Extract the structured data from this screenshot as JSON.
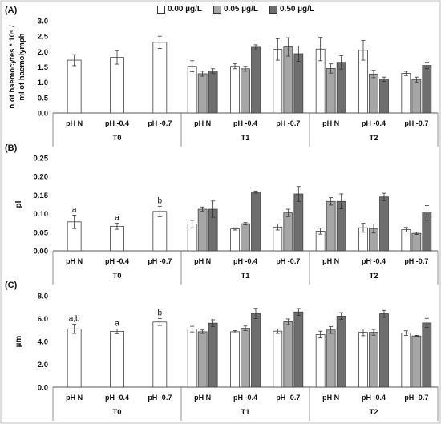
{
  "legend": {
    "items": [
      {
        "label": "0.00 µg/L",
        "color": "#ffffff"
      },
      {
        "label": "0.05 µg/L",
        "color": "#a6a6a6"
      },
      {
        "label": "0.50 µg/L",
        "color": "#6e6e6e"
      }
    ]
  },
  "chart_data": [
    {
      "type": "bar",
      "panel_label": "(A)",
      "ylabel": "n of haemocytes * 10⁶ / ml of haemolymph",
      "ylim": [
        0,
        3.0
      ],
      "yticks": [
        "0.0",
        "0.5",
        "1.0",
        "1.5",
        "2.0",
        "2.5",
        "3.0"
      ],
      "groups": [
        {
          "label": "T0",
          "categories": [
            "pH N",
            "pH -0.4",
            "pH -0.7"
          ],
          "values": [
            [
              1.72,
              null,
              null
            ],
            [
              1.81,
              null,
              null
            ],
            [
              2.3,
              null,
              null
            ]
          ],
          "errors": [
            [
              0.18,
              null,
              null
            ],
            [
              0.22,
              null,
              null
            ],
            [
              0.2,
              null,
              null
            ]
          ],
          "letters": [
            null,
            null,
            null
          ]
        },
        {
          "label": "T1",
          "categories": [
            "pH N",
            "pH -0.4",
            "pH -0.7"
          ],
          "values": [
            [
              1.52,
              1.28,
              1.37
            ],
            [
              1.52,
              1.44,
              2.14
            ],
            [
              2.07,
              2.15,
              1.93
            ]
          ],
          "errors": [
            [
              0.18,
              0.08,
              0.07
            ],
            [
              0.08,
              0.08,
              0.08
            ],
            [
              0.35,
              0.3,
              0.25
            ]
          ],
          "letters": [
            null,
            null,
            null
          ]
        },
        {
          "label": "T2",
          "categories": [
            "pH N",
            "pH -0.4",
            "pH -0.7"
          ],
          "values": [
            [
              2.08,
              1.45,
              1.65
            ],
            [
              2.04,
              1.27,
              1.1
            ],
            [
              1.29,
              1.09,
              1.55
            ]
          ],
          "errors": [
            [
              0.38,
              0.15,
              0.22
            ],
            [
              0.32,
              0.12,
              0.07
            ],
            [
              0.07,
              0.08,
              0.1
            ]
          ],
          "letters": [
            null,
            null,
            null
          ]
        }
      ]
    },
    {
      "type": "bar",
      "panel_label": "(B)",
      "ylabel": "pI",
      "ylim": [
        0,
        0.25
      ],
      "yticks": [
        "0.00",
        "0.05",
        "0.10",
        "0.15",
        "0.20",
        "0.25"
      ],
      "groups": [
        {
          "label": "T0",
          "categories": [
            "pH N",
            "pH -0.4",
            "pH -0.7"
          ],
          "values": [
            [
              0.078,
              null,
              null
            ],
            [
              0.066,
              null,
              null
            ],
            [
              0.106,
              null,
              null
            ]
          ],
          "errors": [
            [
              0.018,
              null,
              null
            ],
            [
              0.008,
              null,
              null
            ],
            [
              0.014,
              null,
              null
            ]
          ],
          "letters": [
            "a",
            "a",
            "b"
          ]
        },
        {
          "label": "T1",
          "categories": [
            "pH N",
            "pH -0.4",
            "pH -0.7"
          ],
          "values": [
            [
              0.072,
              0.112,
              0.112
            ],
            [
              0.059,
              0.073,
              0.158
            ],
            [
              0.064,
              0.102,
              0.153
            ]
          ],
          "errors": [
            [
              0.01,
              0.006,
              0.022
            ],
            [
              0.003,
              0.003,
              0.003
            ],
            [
              0.008,
              0.01,
              0.02
            ]
          ],
          "letters": [
            null,
            null,
            null
          ]
        },
        {
          "label": "T2",
          "categories": [
            "pH N",
            "pH -0.4",
            "pH -0.7"
          ],
          "values": [
            [
              0.053,
              0.133,
              0.133
            ],
            [
              0.062,
              0.06,
              0.145
            ],
            [
              0.057,
              0.047,
              0.102
            ]
          ],
          "errors": [
            [
              0.008,
              0.01,
              0.02
            ],
            [
              0.012,
              0.012,
              0.01
            ],
            [
              0.006,
              0.003,
              0.02
            ]
          ],
          "letters": [
            null,
            null,
            null
          ]
        }
      ]
    },
    {
      "type": "bar",
      "panel_label": "(C)",
      "ylabel": "µm",
      "ylim": [
        0,
        8.0
      ],
      "yticks": [
        "0.0",
        "2.0",
        "4.0",
        "6.0",
        "8.0"
      ],
      "groups": [
        {
          "label": "T0",
          "categories": [
            "pH N",
            "pH -0.4",
            "pH -0.7"
          ],
          "values": [
            [
              5.1,
              null,
              null
            ],
            [
              4.88,
              null,
              null
            ],
            [
              5.7,
              null,
              null
            ]
          ],
          "errors": [
            [
              0.4,
              null,
              null
            ],
            [
              0.2,
              null,
              null
            ],
            [
              0.3,
              null,
              null
            ]
          ],
          "letters": [
            "a,b",
            "a",
            "b"
          ]
        },
        {
          "label": "T1",
          "categories": [
            "pH N",
            "pH -0.4",
            "pH -0.7"
          ],
          "values": [
            [
              5.08,
              4.85,
              5.6
            ],
            [
              4.85,
              5.15,
              6.45
            ],
            [
              4.9,
              5.72,
              6.58
            ]
          ],
          "errors": [
            [
              0.25,
              0.15,
              0.3
            ],
            [
              0.1,
              0.2,
              0.45
            ],
            [
              0.2,
              0.25,
              0.3
            ]
          ],
          "letters": [
            null,
            null,
            null
          ]
        },
        {
          "label": "T2",
          "categories": [
            "pH N",
            "pH -0.4",
            "pH -0.7"
          ],
          "values": [
            [
              4.6,
              5.0,
              6.22
            ],
            [
              4.8,
              4.8,
              6.42
            ],
            [
              4.73,
              4.48,
              5.62
            ]
          ],
          "errors": [
            [
              0.3,
              0.3,
              0.3
            ],
            [
              0.3,
              0.25,
              0.3
            ],
            [
              0.2,
              0.05,
              0.4
            ]
          ],
          "letters": [
            null,
            null,
            null
          ]
        }
      ]
    }
  ]
}
